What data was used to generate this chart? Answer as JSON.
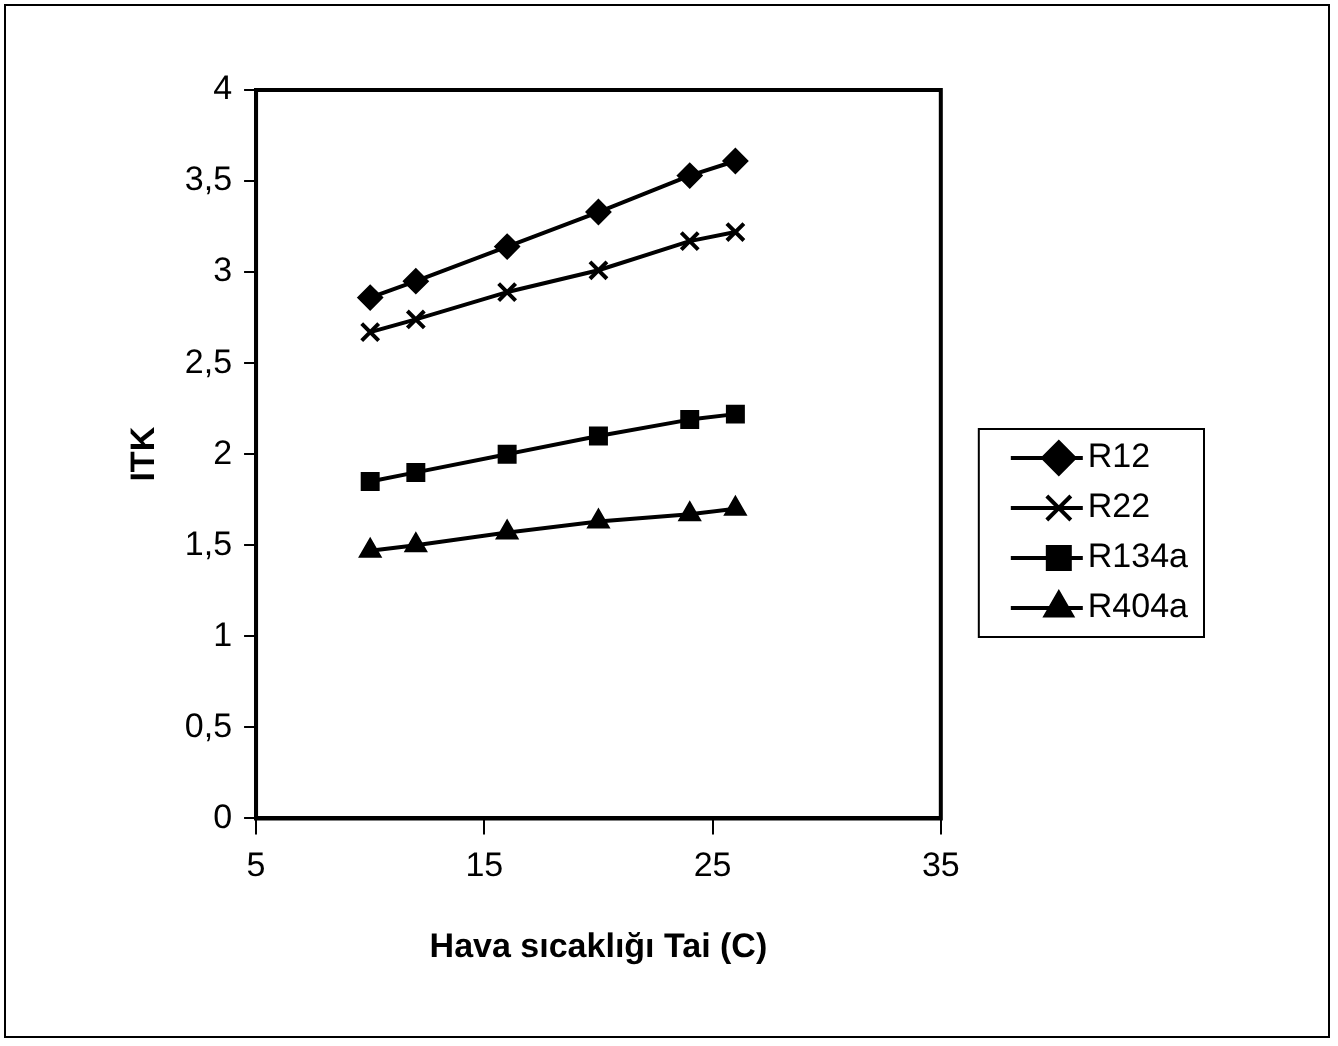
{
  "chart_data": {
    "type": "line",
    "xlabel": "Hava sıcaklığı Tai (C)",
    "ylabel": "ITK",
    "x": [
      10,
      12,
      16,
      20,
      24,
      26
    ],
    "series": [
      {
        "name": "R12",
        "color": "#000000",
        "marker": "diamond",
        "values": [
          2.86,
          2.95,
          3.14,
          3.33,
          3.53,
          3.61
        ]
      },
      {
        "name": "R22",
        "color": "#000000",
        "marker": "cross",
        "values": [
          2.67,
          2.74,
          2.89,
          3.01,
          3.17,
          3.22
        ]
      },
      {
        "name": "R134a",
        "color": "#000000",
        "marker": "square",
        "values": [
          1.85,
          1.9,
          2.0,
          2.1,
          2.19,
          2.22
        ]
      },
      {
        "name": "R404a",
        "color": "#000000",
        "marker": "triangle",
        "values": [
          1.47,
          1.5,
          1.57,
          1.63,
          1.67,
          1.7
        ]
      }
    ],
    "xlim": [
      5,
      35
    ],
    "xticks": [
      5,
      15,
      25,
      35
    ],
    "ylim": [
      0,
      4
    ],
    "yticks": [
      0,
      {
        "value": 0.5,
        "label": "0,5"
      },
      1,
      {
        "value": 1.5,
        "label": "1,5"
      },
      2,
      {
        "value": 2.5,
        "label": "2,5"
      },
      3,
      {
        "value": 3.5,
        "label": "3,5"
      },
      4
    ],
    "grid": false,
    "legend": "right",
    "line_style": "solid"
  }
}
